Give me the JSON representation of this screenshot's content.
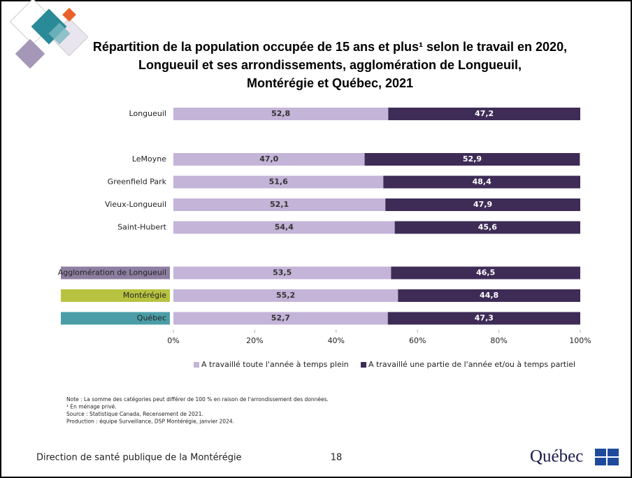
{
  "chart_data": {
    "type": "stacked-barh",
    "title": [
      "Répartition de la population occupée de 15 ans et plus¹ selon le travail en 2020,",
      "Longueuil et ses arrondissements, agglomération de Longueuil,",
      "Montérégie et Québec, 2021"
    ],
    "categories": [
      "Longueuil",
      null,
      "LeMoyne",
      "Greenfield Park",
      "Vieux-Longueuil",
      "Saint-Hubert",
      null,
      "Agglomération de Longueuil",
      "Montérégie",
      "Québec"
    ],
    "category_colors": [
      null,
      null,
      null,
      null,
      null,
      null,
      null,
      "#8e7fa2",
      "#b7c340",
      "#4b9ea7"
    ],
    "series": [
      {
        "name": "A travaillé toute l'année à temps plein",
        "color": "#c4b4d8",
        "values": [
          52.8,
          null,
          47.0,
          51.6,
          52.1,
          54.4,
          null,
          53.5,
          55.2,
          52.7
        ],
        "value_labels": [
          "52,8",
          null,
          "47,0",
          "51,6",
          "52,1",
          "54,4",
          null,
          "53,5",
          "55,2",
          "52,7"
        ]
      },
      {
        "name": "A travaillé une partie de l'année et/ou à temps partiel",
        "color": "#3e2c57",
        "values": [
          47.2,
          null,
          52.9,
          48.4,
          47.9,
          45.6,
          null,
          46.5,
          44.8,
          47.3
        ],
        "value_labels": [
          "47,2",
          null,
          "52,9",
          "48,4",
          "47,9",
          "45,6",
          null,
          "46,5",
          "44,8",
          "47,3"
        ]
      }
    ],
    "xlim": [
      0,
      100
    ],
    "xticks": [
      {
        "value": 0,
        "label": "0%"
      },
      {
        "value": 20,
        "label": "20%"
      },
      {
        "value": 40,
        "label": "40%"
      },
      {
        "value": 60,
        "label": "60%"
      },
      {
        "value": 80,
        "label": "80%"
      },
      {
        "value": 100,
        "label": "100%"
      }
    ],
    "legend": "bottom"
  },
  "slide": {
    "notes": [
      "Note : La somme des catégories peut différer de 100 % en raison de l'arrondissement des données.",
      "¹ En ménage privé.",
      "Source : Statistique Canada, Recensement de 2021.",
      "Production : équipe Surveillance, DSP Montérégie, janvier 2024."
    ],
    "footer": "Direction de santé publique de la Montérégie",
    "page_number": 18,
    "logo": "Québec"
  }
}
